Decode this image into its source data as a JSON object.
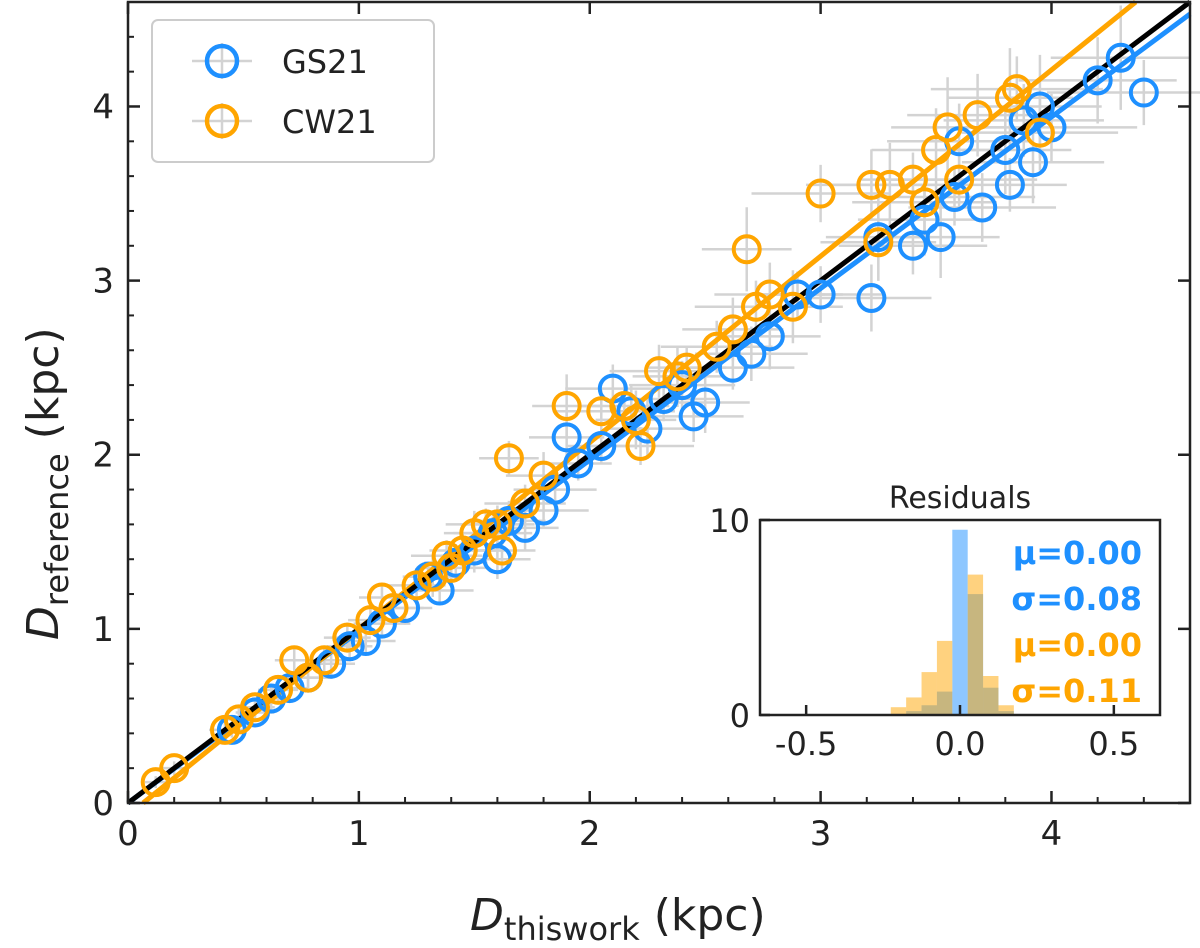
{
  "chart_data": {
    "type": "scatter",
    "xlabel": {
      "main": "D",
      "sub": "thiswork",
      "unit": " (kpc)"
    },
    "ylabel": {
      "main": "D",
      "sub": "reference",
      "unit": " (kpc)"
    },
    "xlim": [
      0,
      4.6
    ],
    "ylim": [
      0,
      4.6
    ],
    "xticks": [
      "0",
      "1",
      "2",
      "3",
      "4"
    ],
    "yticks": [
      "0",
      "1",
      "2",
      "3",
      "4"
    ],
    "grid": false,
    "legend_position": "top-left",
    "colors": {
      "GS21": "#1e90ff",
      "CW21": "#ffa500",
      "identity": "#000000",
      "errorbar": "#d3d3d3"
    },
    "identity_line": {
      "slope": 1.0,
      "intercept": 0.0
    },
    "series": [
      {
        "name": "GS21",
        "fit": {
          "slope": 0.985,
          "intercept": 0.0
        },
        "points": [
          [
            0.45,
            0.42
          ],
          [
            0.55,
            0.52
          ],
          [
            0.62,
            0.6
          ],
          [
            0.7,
            0.66
          ],
          [
            0.78,
            0.72
          ],
          [
            0.88,
            0.8
          ],
          [
            0.96,
            0.9
          ],
          [
            1.03,
            0.93
          ],
          [
            1.1,
            1.03
          ],
          [
            1.2,
            1.12
          ],
          [
            1.3,
            1.3
          ],
          [
            1.35,
            1.22
          ],
          [
            1.42,
            1.38
          ],
          [
            1.5,
            1.45
          ],
          [
            1.58,
            1.55
          ],
          [
            1.65,
            1.62
          ],
          [
            1.72,
            1.58
          ],
          [
            1.8,
            1.68
          ],
          [
            1.85,
            1.8
          ],
          [
            1.9,
            2.1
          ],
          [
            1.95,
            1.95
          ],
          [
            2.1,
            2.38
          ],
          [
            2.18,
            2.25
          ],
          [
            2.25,
            2.15
          ],
          [
            2.32,
            2.32
          ],
          [
            2.45,
            2.22
          ],
          [
            2.5,
            2.3
          ],
          [
            2.62,
            2.5
          ],
          [
            2.7,
            2.58
          ],
          [
            2.78,
            2.68
          ],
          [
            2.9,
            2.92
          ],
          [
            3.0,
            2.92
          ],
          [
            3.22,
            2.9
          ],
          [
            3.25,
            3.25
          ],
          [
            3.4,
            3.2
          ],
          [
            3.45,
            3.35
          ],
          [
            3.52,
            3.25
          ],
          [
            3.58,
            3.48
          ],
          [
            3.7,
            3.42
          ],
          [
            3.8,
            3.75
          ],
          [
            3.82,
            3.55
          ],
          [
            3.88,
            3.92
          ],
          [
            3.92,
            3.68
          ],
          [
            3.95,
            4.0
          ],
          [
            4.0,
            3.88
          ],
          [
            4.2,
            4.15
          ],
          [
            4.3,
            4.28
          ],
          [
            4.4,
            4.08
          ],
          [
            3.6,
            3.8
          ],
          [
            1.6,
            1.4
          ],
          [
            2.05,
            2.05
          ],
          [
            2.4,
            2.4
          ]
        ]
      },
      {
        "name": "CW21",
        "fit": {
          "slope": 1.07,
          "intercept": -0.07
        },
        "points": [
          [
            0.12,
            0.12
          ],
          [
            0.2,
            0.2
          ],
          [
            0.42,
            0.42
          ],
          [
            0.48,
            0.48
          ],
          [
            0.55,
            0.55
          ],
          [
            0.65,
            0.65
          ],
          [
            0.72,
            0.82
          ],
          [
            0.78,
            0.72
          ],
          [
            0.85,
            0.82
          ],
          [
            0.95,
            0.95
          ],
          [
            1.05,
            1.05
          ],
          [
            1.15,
            1.12
          ],
          [
            1.25,
            1.25
          ],
          [
            1.32,
            1.3
          ],
          [
            1.38,
            1.42
          ],
          [
            1.45,
            1.45
          ],
          [
            1.5,
            1.55
          ],
          [
            1.55,
            1.6
          ],
          [
            1.6,
            1.6
          ],
          [
            1.62,
            1.45
          ],
          [
            1.65,
            1.98
          ],
          [
            1.72,
            1.72
          ],
          [
            1.8,
            1.88
          ],
          [
            1.9,
            2.28
          ],
          [
            2.05,
            2.25
          ],
          [
            2.15,
            2.28
          ],
          [
            2.2,
            2.2
          ],
          [
            2.22,
            2.05
          ],
          [
            2.3,
            2.48
          ],
          [
            2.38,
            2.45
          ],
          [
            2.42,
            2.5
          ],
          [
            2.55,
            2.62
          ],
          [
            2.62,
            2.72
          ],
          [
            2.68,
            3.18
          ],
          [
            2.72,
            2.85
          ],
          [
            2.78,
            2.92
          ],
          [
            2.88,
            2.85
          ],
          [
            3.0,
            3.5
          ],
          [
            3.22,
            3.55
          ],
          [
            3.25,
            3.22
          ],
          [
            3.4,
            3.58
          ],
          [
            3.45,
            3.45
          ],
          [
            3.5,
            3.75
          ],
          [
            3.55,
            3.88
          ],
          [
            3.6,
            3.58
          ],
          [
            3.68,
            3.95
          ],
          [
            3.82,
            4.05
          ],
          [
            3.85,
            4.1
          ],
          [
            3.95,
            3.85
          ],
          [
            3.3,
            3.55
          ],
          [
            1.1,
            1.18
          ],
          [
            1.4,
            1.35
          ]
        ]
      }
    ],
    "inset": {
      "title": "Residuals",
      "xlim": [
        -0.65,
        0.65
      ],
      "ylim": [
        0,
        10
      ],
      "xticks": [
        "-0.5",
        "0.0",
        "0.5"
      ],
      "yticks": [
        "0",
        "10"
      ],
      "bin_width": 0.05,
      "series": [
        {
          "name": "GS21",
          "bins": [
            {
              "center": -0.15,
              "count": 0.2
            },
            {
              "center": -0.1,
              "count": 0.5
            },
            {
              "center": -0.05,
              "count": 1.2
            },
            {
              "center": 0.0,
              "count": 9.5
            },
            {
              "center": 0.05,
              "count": 6.2
            },
            {
              "center": 0.1,
              "count": 1.4
            },
            {
              "center": 0.15,
              "count": 0.2
            }
          ]
        },
        {
          "name": "CW21",
          "bins": [
            {
              "center": -0.2,
              "count": 0.4
            },
            {
              "center": -0.15,
              "count": 0.9
            },
            {
              "center": -0.1,
              "count": 2.2
            },
            {
              "center": -0.05,
              "count": 3.8
            },
            {
              "center": 0.05,
              "count": 7.2
            },
            {
              "center": 0.1,
              "count": 2.0
            },
            {
              "center": 0.15,
              "count": 0.5
            }
          ]
        }
      ],
      "stats": [
        {
          "series": "GS21",
          "label": "μ=0.00"
        },
        {
          "series": "GS21",
          "label": "σ=0.08"
        },
        {
          "series": "CW21",
          "label": "μ=0.00"
        },
        {
          "series": "CW21",
          "label": "σ=0.11"
        }
      ]
    }
  }
}
